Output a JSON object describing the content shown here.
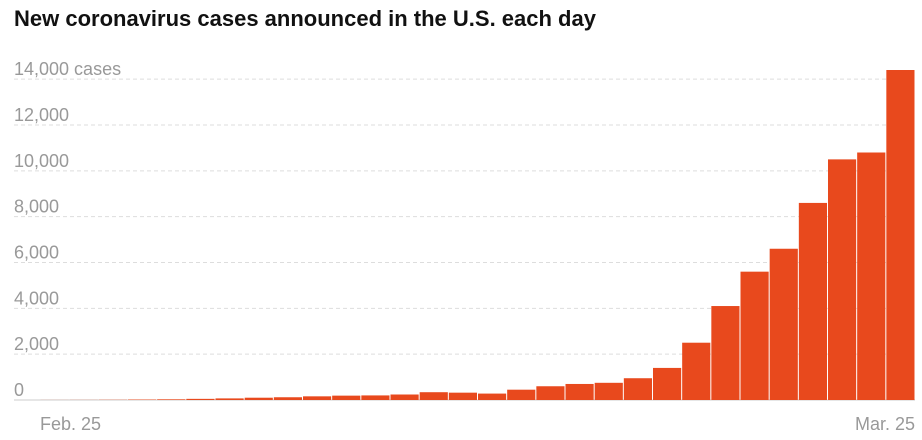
{
  "chart_data": {
    "type": "bar",
    "title": "New coronavirus cases announced in the U.S. each day",
    "categories": [
      "Feb. 25",
      null,
      null,
      null,
      null,
      null,
      null,
      null,
      null,
      null,
      null,
      null,
      null,
      null,
      null,
      null,
      null,
      null,
      null,
      null,
      null,
      null,
      null,
      null,
      null,
      null,
      null,
      null,
      null,
      "Mar. 25"
    ],
    "values": [
      3,
      5,
      10,
      20,
      30,
      50,
      70,
      100,
      120,
      160,
      190,
      200,
      240,
      340,
      320,
      280,
      450,
      600,
      700,
      750,
      950,
      1400,
      2500,
      4100,
      5600,
      6600,
      8600,
      10500,
      10800,
      14400
    ],
    "color": "#e8491d",
    "ylim": [
      0,
      14400
    ],
    "yticks": [
      0,
      {
        "value": 2000,
        "label": "2,000"
      },
      {
        "value": 4000,
        "label": "4,000"
      },
      {
        "value": 6000,
        "label": "6,000"
      },
      {
        "value": 8000,
        "label": "8,000"
      },
      {
        "value": 10000,
        "label": "10,000"
      },
      {
        "value": 12000,
        "label": "12,000"
      },
      {
        "value": 14000,
        "label": "14,000 cases"
      }
    ],
    "grid": true
  }
}
